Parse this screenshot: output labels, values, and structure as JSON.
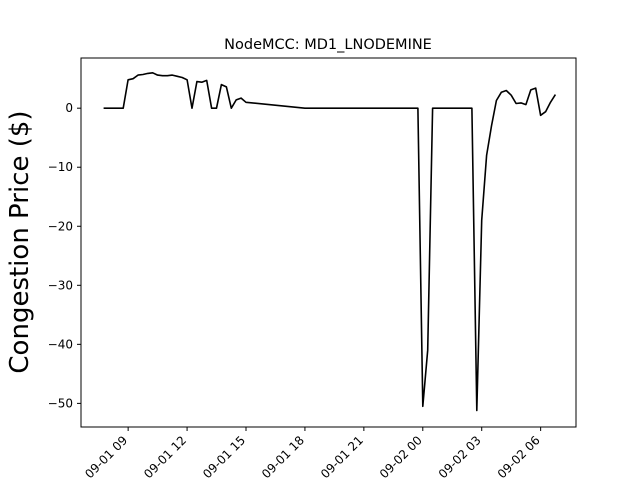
{
  "chart_data": {
    "type": "line",
    "title": "NodeMCC: MD1_LNODEMINE",
    "xlabel": "",
    "ylabel": "Congestion Price ($)",
    "grid": false,
    "legend": "none",
    "line_color": "#000000",
    "xlim": [
      "2023-09-01 06:36",
      "2023-09-02 07:48"
    ],
    "ylim": [
      -54,
      8.5
    ],
    "x_ticks": [
      "09-01 09",
      "09-01 12",
      "09-01 15",
      "09-01 18",
      "09-01 21",
      "09-02 00",
      "09-02 03",
      "09-02 06"
    ],
    "y_ticks": [
      0,
      -10,
      -20,
      -30,
      -40,
      -50
    ],
    "x_tick_values": [
      "2023-09-01 09:00",
      "2023-09-01 12:00",
      "2023-09-01 15:00",
      "2023-09-01 18:00",
      "2023-09-01 21:00",
      "2023-09-02 00:00",
      "2023-09-02 03:00",
      "2023-09-02 06:00"
    ],
    "series": [
      {
        "x": [
          "2023-09-01 07:45",
          "2023-09-01 08:15",
          "2023-09-01 08:45",
          "2023-09-01 09:00",
          "2023-09-01 09:15",
          "2023-09-01 09:30",
          "2023-09-01 09:45",
          "2023-09-01 10:00",
          "2023-09-01 10:15",
          "2023-09-01 10:30",
          "2023-09-01 10:45",
          "2023-09-01 11:00",
          "2023-09-01 11:15",
          "2023-09-01 11:30",
          "2023-09-01 11:45",
          "2023-09-01 12:00",
          "2023-09-01 12:15",
          "2023-09-01 12:30",
          "2023-09-01 12:45",
          "2023-09-01 13:00",
          "2023-09-01 13:15",
          "2023-09-01 13:30",
          "2023-09-01 13:45",
          "2023-09-01 14:00",
          "2023-09-01 14:15",
          "2023-09-01 14:30",
          "2023-09-01 14:45",
          "2023-09-01 15:00",
          "2023-09-01 18:00",
          "2023-09-01 21:00",
          "2023-09-01 23:45",
          "2023-09-02 00:00",
          "2023-09-02 00:15",
          "2023-09-02 00:30",
          "2023-09-02 01:00",
          "2023-09-02 02:00",
          "2023-09-02 02:30",
          "2023-09-02 02:45",
          "2023-09-02 03:00",
          "2023-09-02 03:15",
          "2023-09-02 03:30",
          "2023-09-02 03:45",
          "2023-09-02 04:00",
          "2023-09-02 04:15",
          "2023-09-02 04:30",
          "2023-09-02 04:45",
          "2023-09-02 05:00",
          "2023-09-02 05:15",
          "2023-09-02 05:30",
          "2023-09-02 05:45",
          "2023-09-02 06:00",
          "2023-09-02 06:15",
          "2023-09-02 06:30",
          "2023-09-02 06:45"
        ],
        "y": [
          0,
          0,
          0,
          4.8,
          5.0,
          5.6,
          5.7,
          5.9,
          6.0,
          5.6,
          5.5,
          5.5,
          5.6,
          5.4,
          5.2,
          4.8,
          0,
          4.5,
          4.4,
          4.7,
          0,
          0,
          4.0,
          3.6,
          0,
          1.4,
          1.7,
          1.0,
          0,
          0,
          0,
          -50.5,
          -41,
          0,
          0,
          0,
          0,
          -51.2,
          -19,
          -8,
          -3,
          1.3,
          2.7,
          3.0,
          2.2,
          0.8,
          0.9,
          0.6,
          3.1,
          3.4,
          -1.2,
          -0.6,
          1.0,
          2.3
        ]
      }
    ]
  }
}
